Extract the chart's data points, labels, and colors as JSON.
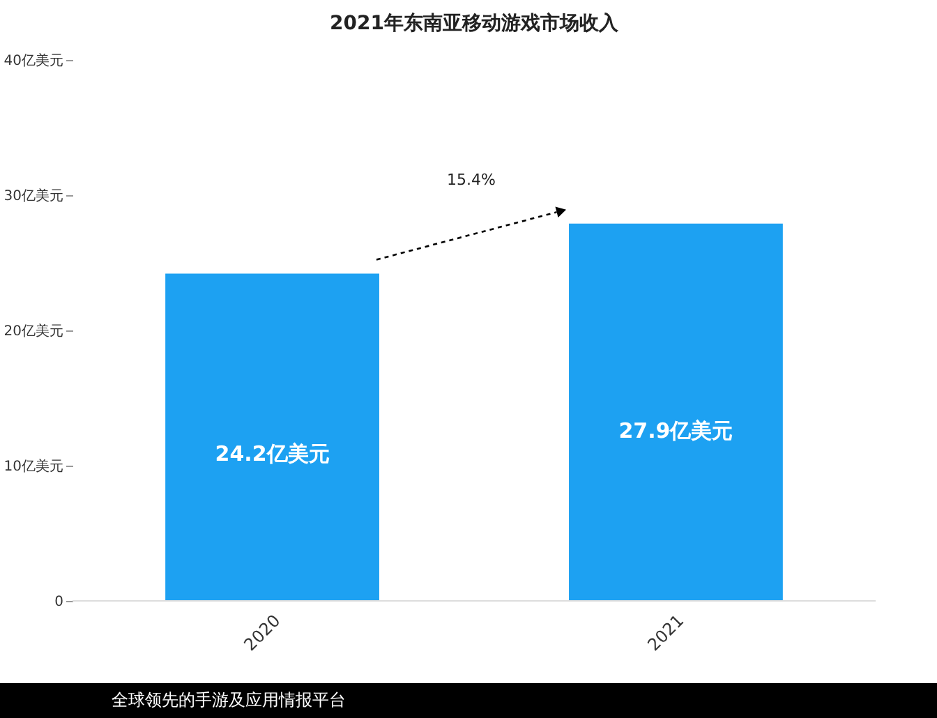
{
  "chart_data": {
    "type": "bar",
    "title": "2021年东南亚移动游戏市场收入",
    "categories": [
      "2020",
      "2021"
    ],
    "values": [
      24.2,
      27.9
    ],
    "value_labels": [
      "24.2亿美元",
      "27.9亿美元"
    ],
    "color": "#1da1f2",
    "ylim": [
      0,
      40
    ],
    "yticks": [
      0,
      {
        "value": 10,
        "label": "10亿美元"
      },
      {
        "value": 20,
        "label": "20亿美元"
      },
      {
        "value": 30,
        "label": "30亿美元"
      },
      {
        "value": 40,
        "label": "40亿美元"
      }
    ],
    "annotations": [
      "15.4%",
      "全球领先的手游及应用情报平台"
    ],
    "grid": false
  }
}
